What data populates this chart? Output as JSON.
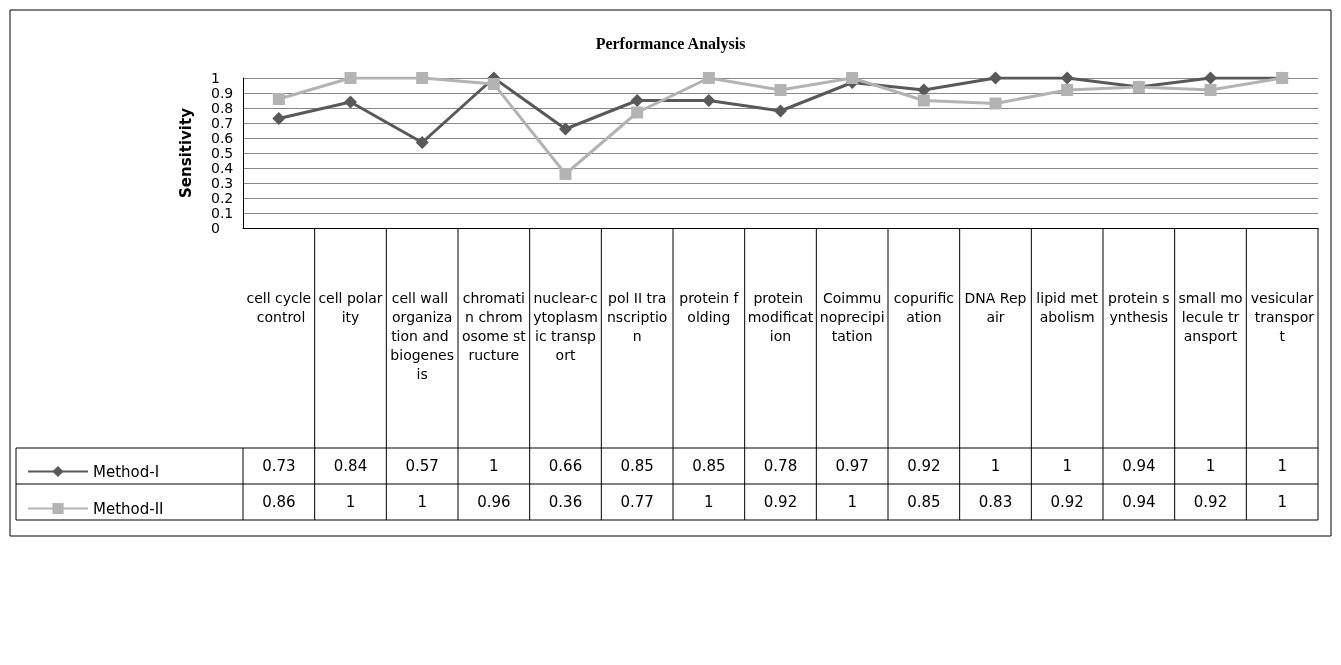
{
  "chart_data": {
    "type": "line",
    "title": "Performance Analysis",
    "ylabel": "Sensitivity",
    "categories": [
      "cell cycle control",
      "cell polarity",
      "cell wall organization and biogenesis",
      "chromatin chromosome structure",
      "nuclear-cytoplasmic transport",
      "pol II transcription",
      "protein folding",
      "protein modification",
      "Coimmunoprecipitation",
      "copurification",
      "DNA Repair",
      "lipid metabolism",
      "protein synthesis",
      "small molecule transport",
      "vesicular transport"
    ],
    "series": [
      {
        "name": "Method-I",
        "color": "#595959",
        "marker": "diamond",
        "values": [
          0.73,
          0.84,
          0.57,
          1,
          0.66,
          0.85,
          0.85,
          0.78,
          0.97,
          0.92,
          1,
          1,
          0.94,
          1,
          1
        ]
      },
      {
        "name": "Method-II",
        "color": "#b3b3b3",
        "marker": "square",
        "values": [
          0.86,
          1,
          1,
          0.96,
          0.36,
          0.77,
          1,
          0.92,
          1,
          0.85,
          0.83,
          0.92,
          0.94,
          0.92,
          1
        ]
      }
    ],
    "ylim": [
      0,
      1
    ],
    "yticks": [
      0,
      0.1,
      0.2,
      0.3,
      0.4,
      0.5,
      0.6,
      0.7,
      0.8,
      0.9,
      1
    ],
    "grid": "y",
    "legend": "bottom left",
    "data_labels": true
  }
}
